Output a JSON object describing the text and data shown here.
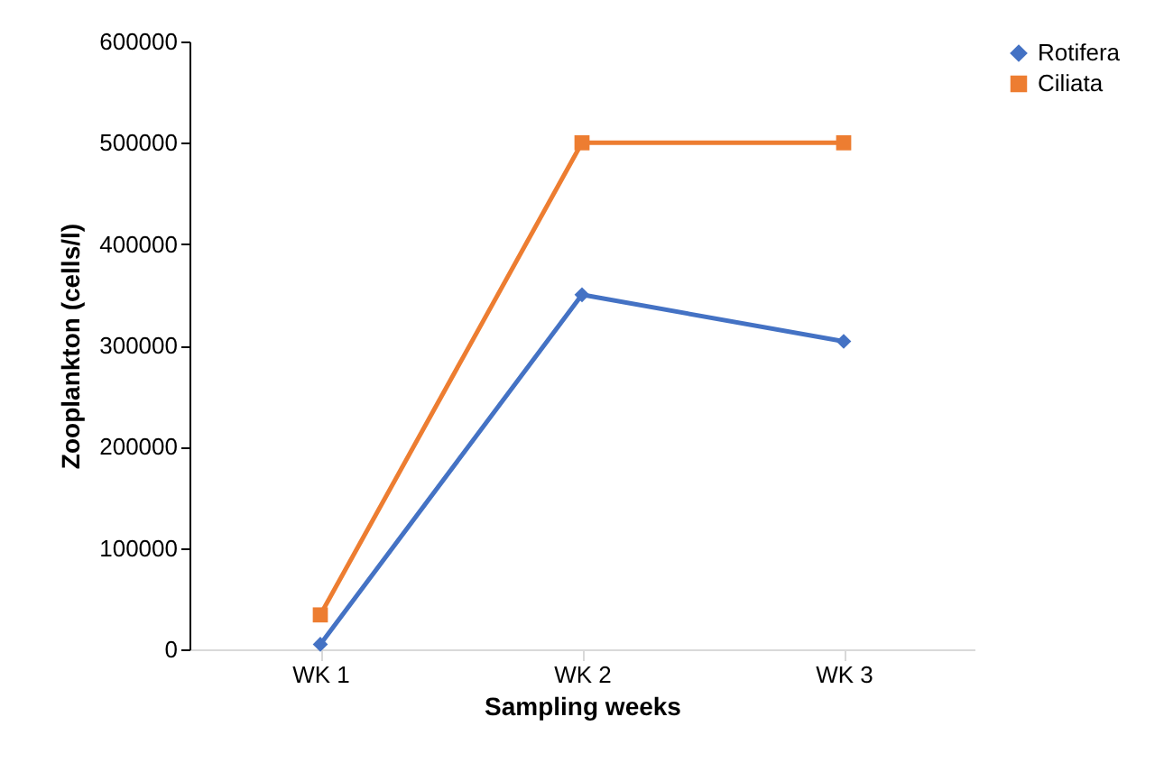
{
  "chart_data": {
    "type": "line",
    "xlabel": "Sampling weeks",
    "ylabel": "Zooplankton (cells/l)",
    "categories": [
      "WK 1",
      "WK 2",
      "WK 3"
    ],
    "series": [
      {
        "name": "Rotifera",
        "color": "#4472c4",
        "marker": "diamond",
        "values": [
          5000,
          350000,
          304000
        ]
      },
      {
        "name": "Ciliata",
        "color": "#ed7d31",
        "marker": "square",
        "values": [
          34000,
          500000,
          500000
        ]
      }
    ],
    "ylim": [
      0,
      600000
    ],
    "yticks": [
      0,
      100000,
      200000,
      300000,
      400000,
      500000,
      600000
    ],
    "grid": false,
    "legend": "right",
    "line_style": "solid"
  }
}
